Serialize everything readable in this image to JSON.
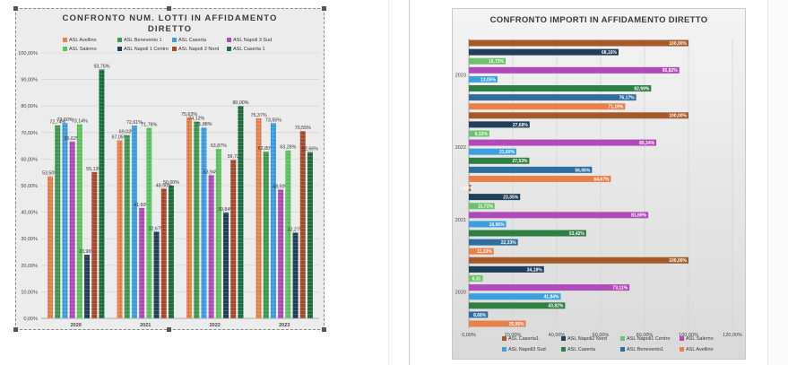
{
  "chart_data": [
    {
      "type": "bar",
      "title": "CONFRONTO NUM. LOTTI IN AFFIDAMENTO\nDIRETTO",
      "categories": [
        "2020",
        "2021",
        "2022",
        "2023"
      ],
      "ylim": [
        0,
        100
      ],
      "yticks": [
        "0,00%",
        "10,00%",
        "20,00%",
        "30,00%",
        "40,00%",
        "50,00%",
        "60,00%",
        "70,00%",
        "80,00%",
        "90,00%",
        "100,00%"
      ],
      "grid": true,
      "legend_position": "top",
      "series": [
        {
          "name": "ASL Avellino",
          "color": "#e8804a",
          "values": [
            53.5,
            67.05,
            75.63,
            75.37
          ],
          "labels": [
            "53,50%",
            "67,05%",
            "75,63%",
            "75,37%"
          ]
        },
        {
          "name": "ASL Benevento 1",
          "color": "#3c9a4e",
          "values": [
            72.74,
            69.03,
            74.12,
            62.8
          ],
          "labels": [
            "72,74%",
            "69,03%",
            "74,12%",
            "62,80%"
          ]
        },
        {
          "name": "ASL Caserta",
          "color": "#3b9fe0",
          "values": [
            73.6,
            72.61,
            71.88,
            73.55
          ],
          "labels": [
            "73,60%",
            "72,61%",
            "71,88%",
            "73,55%"
          ]
        },
        {
          "name": "ASL Napoli 3 Sud",
          "color": "#b04ab8",
          "values": [
            66.62,
            41.6,
            53.94,
            48.5
          ],
          "labels": [
            "66,62%",
            "41,60%",
            "53,94%",
            "48,50%"
          ]
        },
        {
          "name": "ASL Salerno",
          "color": "#5cc45c",
          "values": [
            73.14,
            71.78,
            63.87,
            63.28
          ],
          "labels": [
            "73,14%",
            "71,78%",
            "63,87%",
            "63,28%"
          ]
        },
        {
          "name": "ASL Napoli 1 Centro",
          "color": "#1f3f5a",
          "values": [
            23.96,
            32.67,
            39.84,
            32.27
          ],
          "labels": [
            "23,96%",
            "32,67%",
            "39,84%",
            "32,27%"
          ]
        },
        {
          "name": "ASL Napoli 2 Nord",
          "color": "#a84a2a",
          "values": [
            55.13,
            48.9,
            59.72,
            70.55
          ],
          "labels": [
            "55,13%",
            "48,90%",
            "59,72",
            "70,55%"
          ]
        },
        {
          "name": "ASL Caserta 1",
          "color": "#1c6e3a",
          "values": [
            93.75,
            50.0,
            80.0,
            62.66
          ],
          "labels": [
            "93,75%",
            "50,00%",
            "80,00%",
            "62,66%"
          ]
        }
      ]
    },
    {
      "type": "bar",
      "orientation": "horizontal",
      "title": "CONFRONTO IMPORTI IN AFFIDAMENTO DIRETTO",
      "categories": [
        "2020",
        "2021",
        "2022",
        "2023"
      ],
      "xlim": [
        0,
        120
      ],
      "xticks": [
        "0,00%",
        "20,00%",
        "40,00%",
        "60,00%",
        "80,00%",
        "100,00%",
        "120,00%"
      ],
      "grid": true,
      "legend_position": "bottom",
      "series": [
        {
          "name": "ASL Caserta1",
          "color": "#a55a2a",
          "values": [
            100.0,
            1.0,
            100.0,
            100.0
          ],
          "labels": [
            "100,00%",
            "1,00%",
            "100,00%",
            "100,00%"
          ]
        },
        {
          "name": "ASL Napoli2 Nord",
          "color": "#1f3f5a",
          "values": [
            34.18,
            23.35,
            27.68,
            68.16
          ],
          "labels": [
            "34,18%",
            "23,35%",
            "27,68%",
            "68,16%"
          ]
        },
        {
          "name": "ASL Napoli1 Centro",
          "color": "#6ac46a",
          "values": [
            6.31,
            11.71,
            9.32,
            16.73
          ],
          "labels": [
            "6,31",
            "11,71%",
            "9,32%",
            "16,73%"
          ]
        },
        {
          "name": "ASL Salerno",
          "color": "#b04ab8",
          "values": [
            73.11,
            81.69,
            85.34,
            95.82
          ],
          "labels": [
            "73,11%",
            "81,69%",
            "85,34%",
            "95,82%"
          ]
        },
        {
          "name": "ASL Napoli3 Sud",
          "color": "#3b9fe0",
          "values": [
            41.84,
            16.96,
            21.6,
            13.05
          ],
          "labels": [
            "41,84%",
            "16,96%",
            "21,60%",
            "13,05%"
          ]
        },
        {
          "name": "ASL Caserta",
          "color": "#2f7f45",
          "values": [
            43.82,
            53.42,
            27.53,
            82.99
          ],
          "labels": [
            "43,82%",
            "53,42%",
            "27,53%",
            "82,99%"
          ]
        },
        {
          "name": "ASL Benevento1",
          "color": "#2e6e9e",
          "values": [
            8.68,
            22.33,
            56.06,
            76.17
          ],
          "labels": [
            "8,68%",
            "22,33%",
            "56,06%",
            "76,17%"
          ]
        },
        {
          "name": "ASL Avellino",
          "color": "#e8804a",
          "values": [
            25.95,
            11.33,
            64.67,
            71.18
          ],
          "labels": [
            "25,95%",
            "11,33%",
            "64,67%",
            "71,18%"
          ]
        }
      ]
    }
  ]
}
